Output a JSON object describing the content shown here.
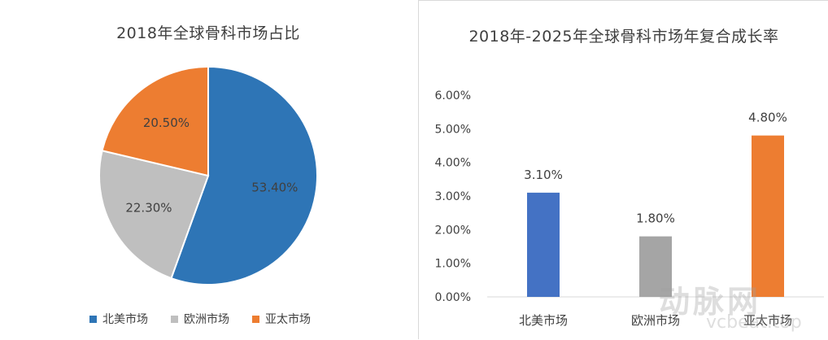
{
  "chart_data": [
    {
      "type": "pie",
      "title": "2018年全球骨科市场占比",
      "categories": [
        "北美市场",
        "欧洲市场",
        "亚太市场"
      ],
      "values": [
        53.4,
        22.3,
        20.5
      ],
      "labels": [
        "53.40%",
        "22.30%",
        "20.50%"
      ],
      "colors": [
        "#2e75b6",
        "#bfbfbf",
        "#ed7d31"
      ],
      "legend_position": "bottom"
    },
    {
      "type": "bar",
      "title": "2018年-2025年全球骨科市场年复合成长率",
      "categories": [
        "北美市场",
        "欧洲市场",
        "亚太市场"
      ],
      "values": [
        3.1,
        1.8,
        4.8
      ],
      "labels": [
        "3.10%",
        "1.80%",
        "4.80%"
      ],
      "colors": [
        "#4472c4",
        "#a5a5a5",
        "#ed7d31"
      ],
      "ylim": [
        0,
        6
      ],
      "yticks": [
        "0.00%",
        "1.00%",
        "2.00%",
        "3.00%",
        "4.00%",
        "5.00%",
        "6.00%"
      ],
      "grid": false
    }
  ],
  "watermark": {
    "main": "动脉网",
    "sub": "vcbeat.top"
  }
}
